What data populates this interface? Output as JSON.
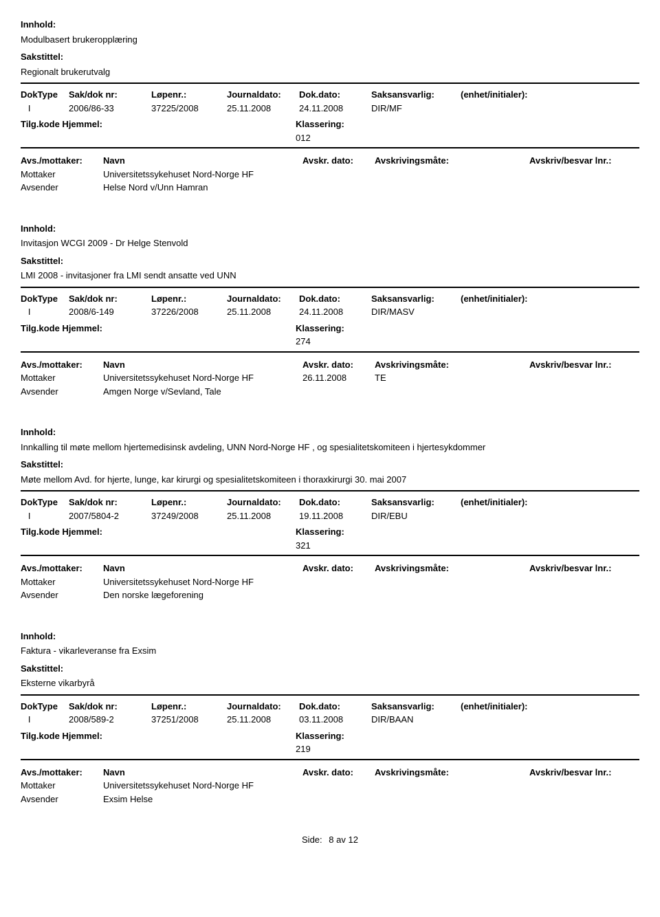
{
  "labels": {
    "innhold": "Innhold:",
    "sakstittel": "Sakstittel:",
    "doktype": "DokType",
    "sakdok": "Sak/dok nr:",
    "lopenr": "Løpenr.:",
    "journaldato": "Journaldato:",
    "dokdato": "Dok.dato:",
    "saksansvarlig": "Saksansvarlig:",
    "enhet": "(enhet/initialer):",
    "tilgkode": "Tilg.kode Hjemmel:",
    "klassering": "Klassering:",
    "avsmottaker": "Avs./mottaker:",
    "navn": "Navn",
    "avskrdato": "Avskr. dato:",
    "avskrivningsmate": "Avskrivingsmåte:",
    "avskrivbesvar": "Avskriv/besvar lnr.:",
    "mottaker": "Mottaker",
    "avsender": "Avsender",
    "side": "Side:",
    "av": "av"
  },
  "records": [
    {
      "innhold": "Modulbasert brukeropplæring",
      "sakstittel": "Regionalt brukerutvalg",
      "doktype": "I",
      "sakdok": "2006/86-33",
      "lopenr": "37225/2008",
      "journaldato": "25.11.2008",
      "dokdato": "24.11.2008",
      "saksansvarlig": "DIR/MF",
      "klassering": "012",
      "parties": [
        {
          "role": "Mottaker",
          "navn": "Universitetssykehuset Nord-Norge HF",
          "avskrdato": "",
          "avskrmate": ""
        },
        {
          "role": "Avsender",
          "navn": "Helse Nord v/Unn Hamran",
          "avskrdato": "",
          "avskrmate": ""
        }
      ]
    },
    {
      "innhold": "Invitasjon WCGI 2009 - Dr Helge Stenvold",
      "sakstittel": "LMI 2008 - invitasjoner fra LMI sendt ansatte ved UNN",
      "doktype": "I",
      "sakdok": "2008/6-149",
      "lopenr": "37226/2008",
      "journaldato": "25.11.2008",
      "dokdato": "24.11.2008",
      "saksansvarlig": "DIR/MASV",
      "klassering": "274",
      "parties": [
        {
          "role": "Mottaker",
          "navn": "Universitetssykehuset Nord-Norge HF",
          "avskrdato": "26.11.2008",
          "avskrmate": "TE"
        },
        {
          "role": "Avsender",
          "navn": "Amgen Norge v/Sevland, Tale",
          "avskrdato": "",
          "avskrmate": ""
        }
      ]
    },
    {
      "innhold": "Innkalling til møte mellom hjertemedisinsk avdeling, UNN Nord-Norge HF , og spesialitetskomiteen i hjertesykdommer",
      "sakstittel": "Møte mellom Avd. for hjerte, lunge, kar kirurgi og spesialitetskomiteen i thoraxkirurgi 30. mai 2007",
      "doktype": "I",
      "sakdok": "2007/5804-2",
      "lopenr": "37249/2008",
      "journaldato": "25.11.2008",
      "dokdato": "19.11.2008",
      "saksansvarlig": "DIR/EBU",
      "klassering": "321",
      "parties": [
        {
          "role": "Mottaker",
          "navn": "Universitetssykehuset Nord-Norge HF",
          "avskrdato": "",
          "avskrmate": ""
        },
        {
          "role": "Avsender",
          "navn": "Den norske lægeforening",
          "avskrdato": "",
          "avskrmate": ""
        }
      ]
    },
    {
      "innhold": "Faktura - vikarleveranse fra Exsim",
      "sakstittel": "Eksterne vikarbyrå",
      "doktype": "I",
      "sakdok": "2008/589-2",
      "lopenr": "37251/2008",
      "journaldato": "25.11.2008",
      "dokdato": "03.11.2008",
      "saksansvarlig": "DIR/BAAN",
      "klassering": "219",
      "parties": [
        {
          "role": "Mottaker",
          "navn": "Universitetssykehuset Nord-Norge HF",
          "avskrdato": "",
          "avskrmate": ""
        },
        {
          "role": "Avsender",
          "navn": "Exsim Helse",
          "avskrdato": "",
          "avskrmate": ""
        }
      ]
    }
  ],
  "footer": {
    "page": "8",
    "total": "12"
  }
}
